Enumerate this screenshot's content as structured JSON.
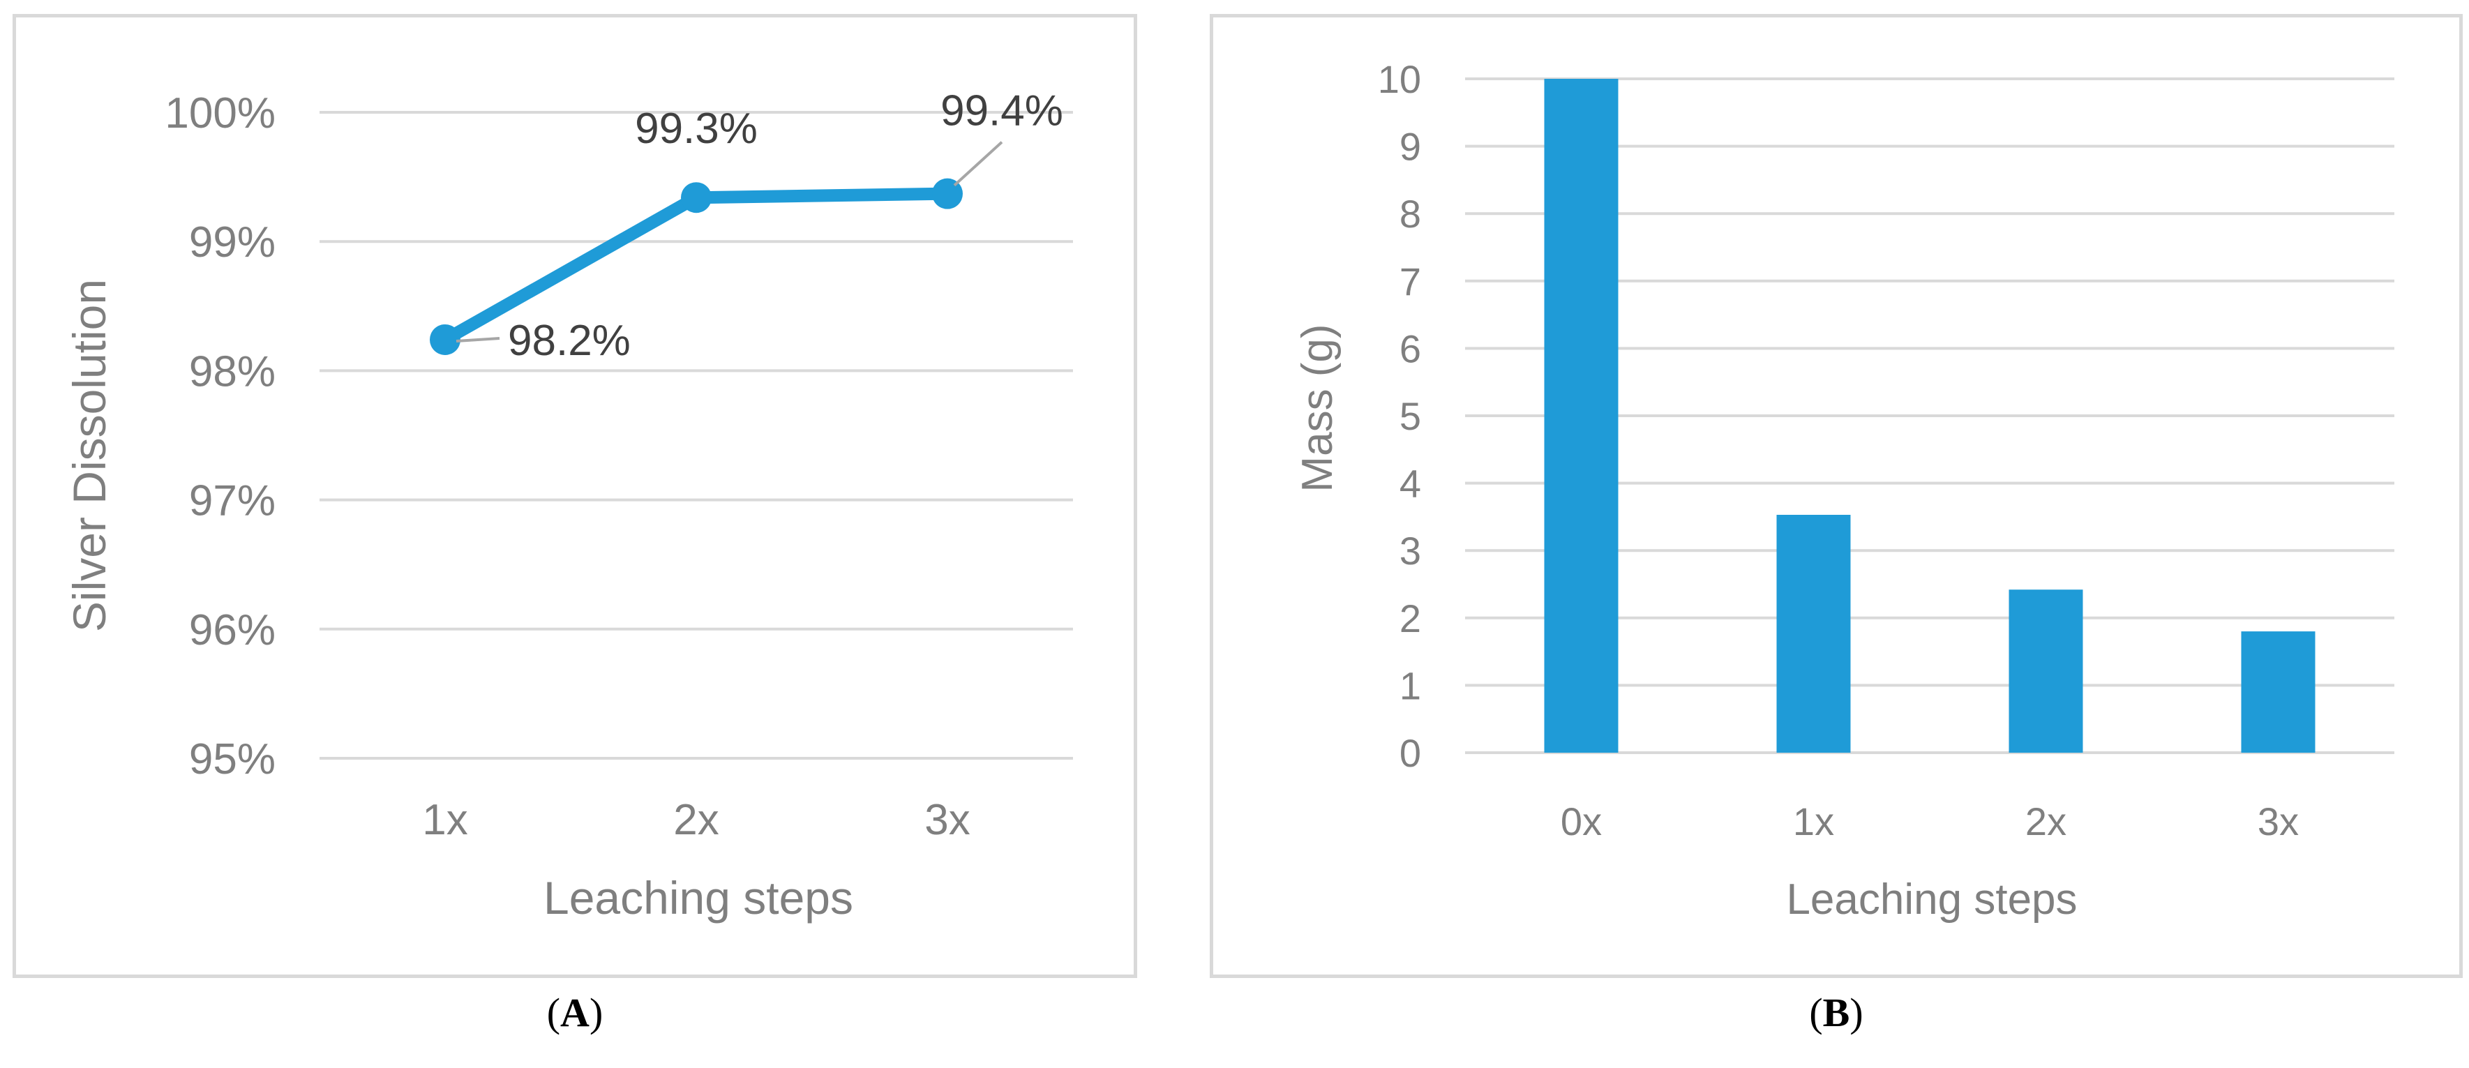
{
  "charts": {
    "a": {
      "caption_letter": "A",
      "chart_data": {
        "type": "line",
        "categories": [
          "1x",
          "2x",
          "3x"
        ],
        "values": [
          98.24,
          99.34,
          99.37
        ],
        "data_labels": [
          "98.2%",
          "99.3%",
          "99.4%"
        ],
        "xlabel": "Leaching steps",
        "ylabel": "Silver Dissolution",
        "ylim": [
          95,
          100
        ],
        "yticks": [
          "95%",
          "96%",
          "97%",
          "98%",
          "99%",
          "100%"
        ],
        "grid": true,
        "color": "#1f9bd7"
      }
    },
    "b": {
      "caption_letter": "B",
      "chart_data": {
        "type": "bar",
        "categories": [
          "0x",
          "1x",
          "2x",
          "3x"
        ],
        "values": [
          10.0,
          3.53,
          2.42,
          1.8
        ],
        "xlabel": "Leaching steps",
        "ylabel": "Mass (g)",
        "ylim": [
          0,
          10
        ],
        "yticks": [
          "0",
          "1",
          "2",
          "3",
          "4",
          "5",
          "6",
          "7",
          "8",
          "9",
          "10"
        ],
        "grid": true,
        "color": "#1f9bd7"
      }
    }
  }
}
